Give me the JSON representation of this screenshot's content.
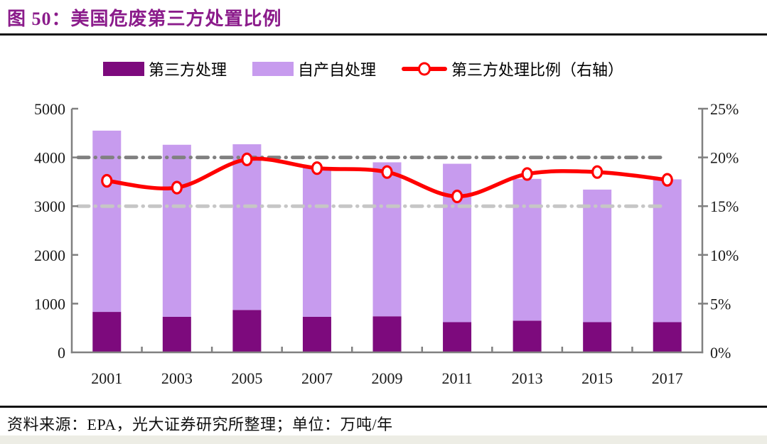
{
  "header": {
    "title": "图 50：美国危废第三方处置比例"
  },
  "legend": {
    "items": [
      {
        "label": "第三方处理",
        "kind": "bar-swatch",
        "color": "#7D0A7D"
      },
      {
        "label": "自产自处理",
        "kind": "bar-swatch",
        "color": "#C79BEE"
      },
      {
        "label": "第三方处理比例（右轴）",
        "kind": "line-marker",
        "color": "#FF0000"
      }
    ]
  },
  "footer": {
    "source": "资料来源：EPA，光大证券研究所整理；单位：万吨/年"
  },
  "colors": {
    "title": "#8B1C8B",
    "bar_third_party": "#7D0A7D",
    "bar_self_treated": "#C79BEE",
    "ratio_line": "#FF0000",
    "axis": "#808080",
    "ref_line_dark": "#808080",
    "ref_line_light": "#C6C6C6",
    "rule": "#111111",
    "bottom_band": "#EDEDE5",
    "text": "#1A1A1A"
  },
  "chart_data": {
    "type": "bar",
    "subtype": "stacked-bars-with-right-axis-line",
    "title": "美国危废第三方处置比例",
    "unit": "万吨/年",
    "categories": [
      "2001",
      "2003",
      "2005",
      "2007",
      "2009",
      "2011",
      "2013",
      "2015",
      "2017"
    ],
    "series": [
      {
        "name": "第三方处理",
        "type": "bar",
        "stacked": true,
        "color": "#7D0A7D",
        "values": [
          830,
          730,
          870,
          730,
          740,
          620,
          650,
          620,
          620
        ]
      },
      {
        "name": "自产自处理",
        "type": "bar",
        "stacked": true,
        "color": "#C79BEE",
        "values": [
          3720,
          3530,
          3400,
          3060,
          3160,
          3250,
          2910,
          2720,
          2930
        ]
      },
      {
        "name": "第三方处理比例（右轴）",
        "type": "line",
        "axis": "right",
        "color": "#FF0000",
        "values": [
          17.6,
          16.9,
          19.8,
          18.9,
          18.5,
          16.0,
          18.3,
          18.5,
          17.7
        ]
      }
    ],
    "stacked_totals": [
      4550,
      4260,
      4270,
      3790,
      3900,
      3870,
      3560,
      3340,
      3550
    ],
    "left_axis": {
      "min": 0,
      "max": 5000,
      "ticks": [
        0,
        1000,
        2000,
        3000,
        4000,
        5000
      ],
      "labels": [
        "0",
        "1000",
        "2000",
        "3000",
        "4000",
        "5000"
      ]
    },
    "right_axis": {
      "min": 0,
      "max": 25,
      "ticks": [
        0,
        5,
        10,
        15,
        20,
        25
      ],
      "labels": [
        "0%",
        "5%",
        "10%",
        "15%",
        "20%",
        "25%"
      ]
    },
    "reference_lines": [
      {
        "axis": "left",
        "value": 4000,
        "equals_right_pct": 20,
        "color": "#808080",
        "style": "dash-dot",
        "width": 5
      },
      {
        "axis": "left",
        "value": 3000,
        "equals_right_pct": 15,
        "color": "#C6C6C6",
        "style": "dash-dot",
        "width": 5
      }
    ],
    "grid": "off",
    "legend_position": "top"
  }
}
